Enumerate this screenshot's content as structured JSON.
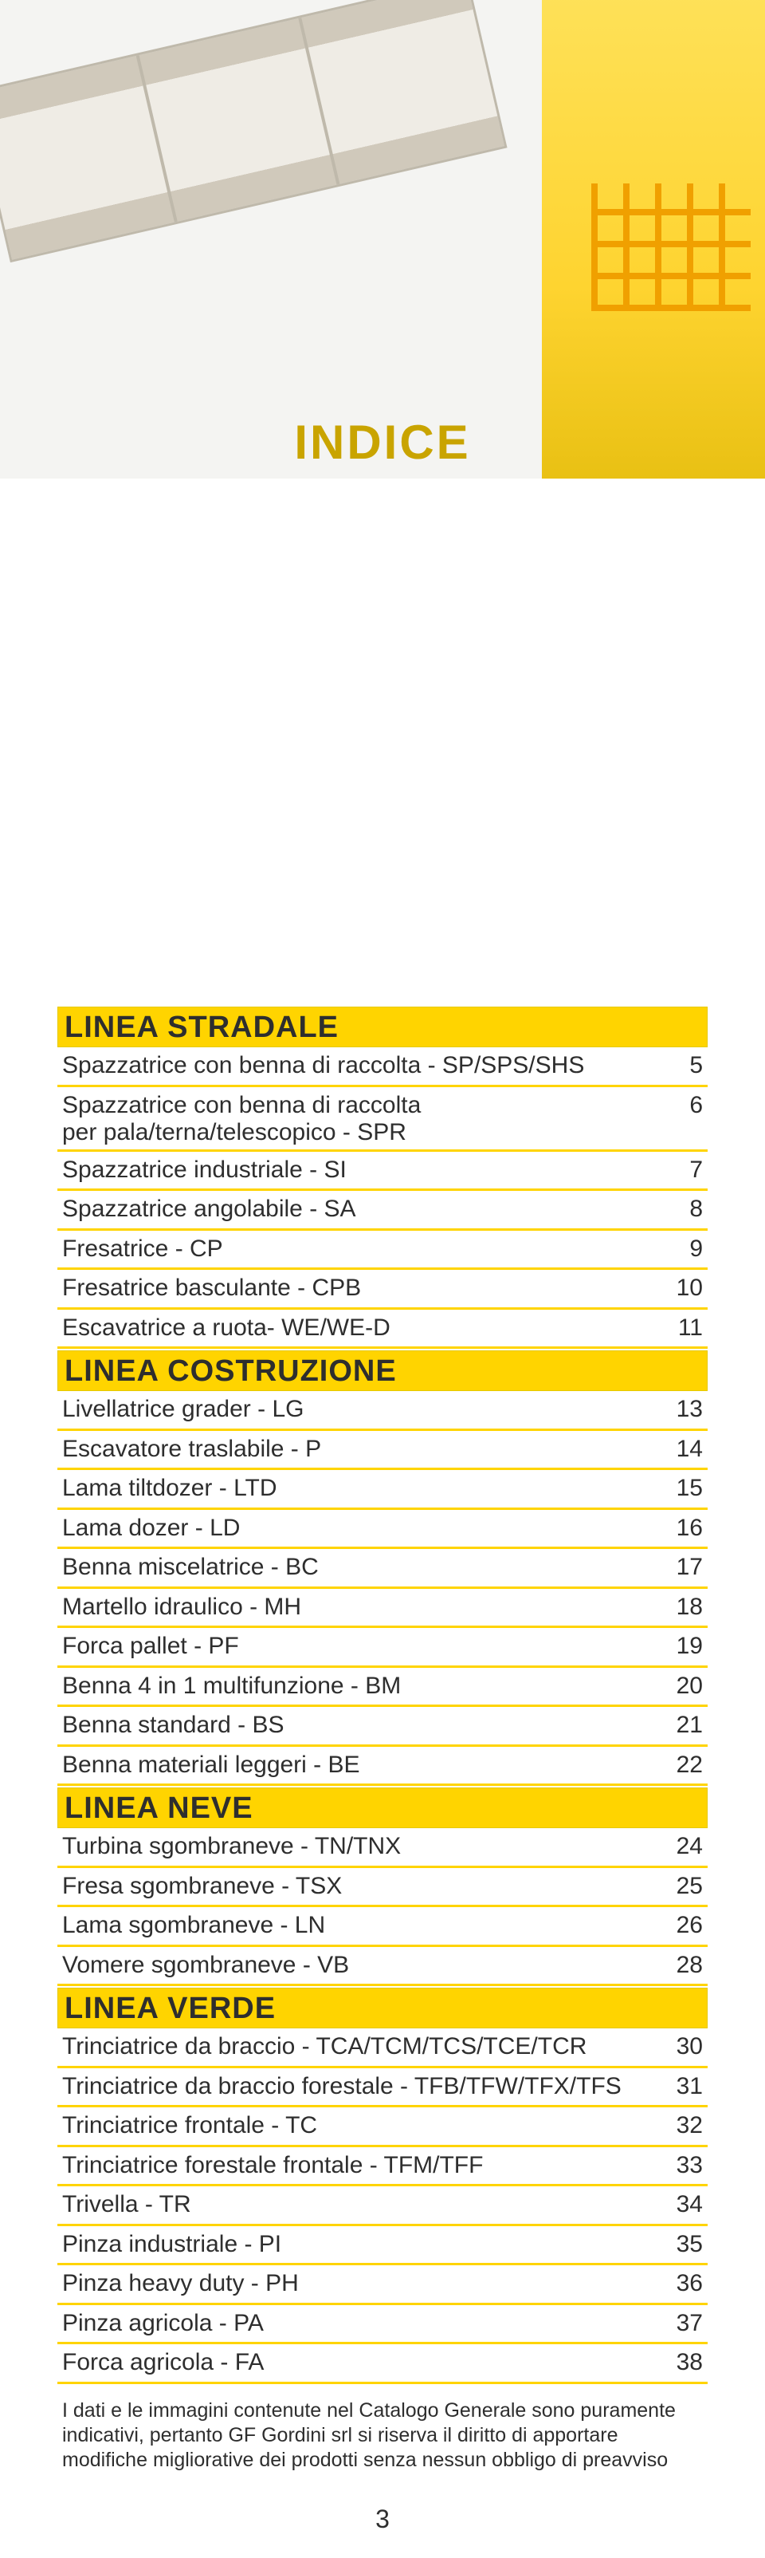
{
  "title": "INDICE",
  "page_number": "3",
  "colors": {
    "highlight": "#ffd400",
    "highlight_border": "#e6c900",
    "text": "#2e2e2e",
    "title_color": "#c9a400",
    "background": "#ffffff"
  },
  "sections": [
    {
      "heading": "LINEA STRADALE",
      "items": [
        {
          "label": "Spazzatrice con benna di raccolta - SP/SPS/SHS",
          "page": "5"
        },
        {
          "label": "Spazzatrice con benna di raccolta\nper pala/terna/telescopico - SPR",
          "page": "6",
          "twoline": true
        },
        {
          "label": "Spazzatrice industriale - SI",
          "page": "7"
        },
        {
          "label": "Spazzatrice angolabile - SA",
          "page": "8"
        },
        {
          "label": "Fresatrice - CP",
          "page": "9"
        },
        {
          "label": "Fresatrice basculante - CPB",
          "page": "10"
        },
        {
          "label": "Escavatrice a ruota- WE/WE-D",
          "page": "11"
        }
      ]
    },
    {
      "heading": "LINEA COSTRUZIONE",
      "items": [
        {
          "label": "Livellatrice grader - LG",
          "page": "13"
        },
        {
          "label": "Escavatore traslabile - P",
          "page": "14"
        },
        {
          "label": "Lama tiltdozer - LTD",
          "page": "15"
        },
        {
          "label": "Lama dozer - LD",
          "page": "16"
        },
        {
          "label": "Benna miscelatrice - BC",
          "page": "17"
        },
        {
          "label": "Martello idraulico - MH",
          "page": "18"
        },
        {
          "label": "Forca pallet - PF",
          "page": "19"
        },
        {
          "label": "Benna 4 in 1 multifunzione - BM",
          "page": "20"
        },
        {
          "label": "Benna standard - BS",
          "page": "21"
        },
        {
          "label": "Benna materiali leggeri - BE",
          "page": "22"
        }
      ]
    },
    {
      "heading": "LINEA NEVE",
      "items": [
        {
          "label": "Turbina sgombraneve - TN/TNX",
          "page": "24"
        },
        {
          "label": "Fresa sgombraneve - TSX",
          "page": "25"
        },
        {
          "label": "Lama sgombraneve - LN",
          "page": "26"
        },
        {
          "label": "Vomere sgombraneve - VB",
          "page": "28"
        }
      ]
    },
    {
      "heading": "LINEA VERDE",
      "items": [
        {
          "label": "Trinciatrice da braccio - TCA/TCM/TCS/TCE/TCR",
          "page": "30"
        },
        {
          "label": "Trinciatrice da braccio forestale - TFB/TFW/TFX/TFS",
          "page": "31"
        },
        {
          "label": "Trinciatrice frontale - TC",
          "page": "32"
        },
        {
          "label": "Trinciatrice forestale frontale - TFM/TFF",
          "page": "33"
        },
        {
          "label": "Trivella - TR",
          "page": "34"
        },
        {
          "label": "Pinza industriale - PI",
          "page": "35"
        },
        {
          "label": "Pinza heavy duty - PH",
          "page": "36"
        },
        {
          "label": "Pinza agricola - PA",
          "page": "37"
        },
        {
          "label": "Forca agricola - FA",
          "page": "38"
        }
      ]
    }
  ],
  "footnote": "I dati e le immagini contenute nel Catalogo Generale sono puramente indicativi, pertanto GF Gordini srl si riserva il diritto di apportare modifiche migliorative dei prodotti senza nessun obbligo di preavviso"
}
